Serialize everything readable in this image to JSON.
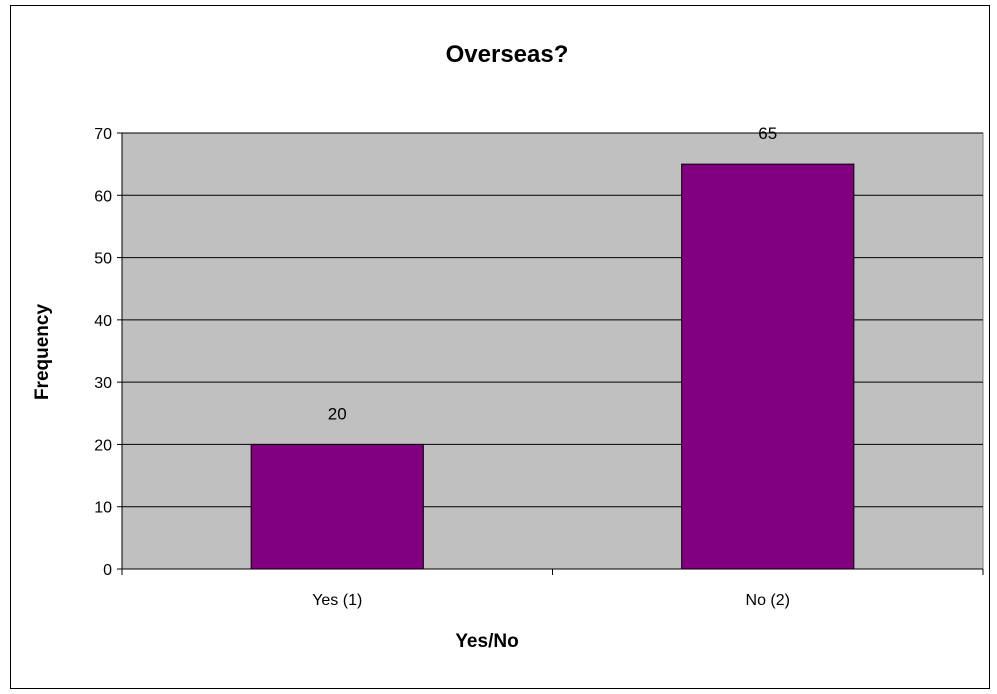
{
  "chart_data": {
    "type": "bar",
    "title": "Overseas?",
    "xlabel": "Yes/No",
    "ylabel": "Frequency",
    "categories": [
      "Yes (1)",
      "No (2)"
    ],
    "values": [
      20,
      65
    ],
    "ylim": [
      0,
      70
    ],
    "yticks": [
      0,
      10,
      20,
      30,
      40,
      50,
      60,
      70
    ],
    "grid": true,
    "legend": "none",
    "colors": {
      "bar": "#800080",
      "plot_background": "#c0c0c0",
      "gridline": "#000000"
    }
  }
}
